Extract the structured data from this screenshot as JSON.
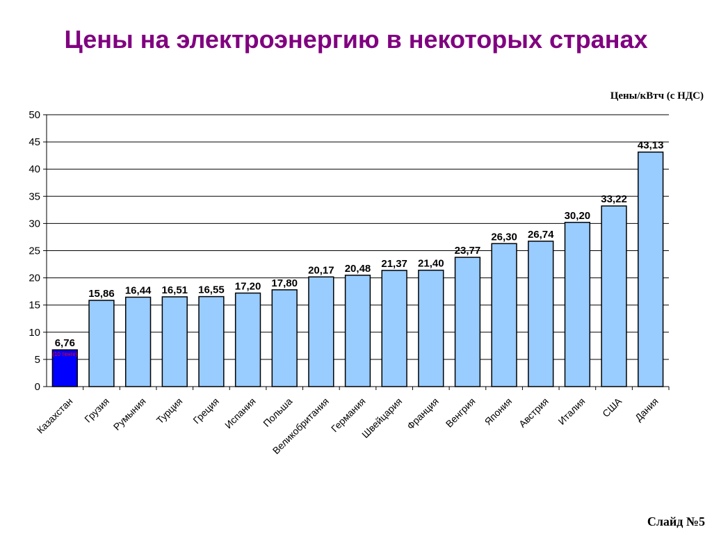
{
  "title": "Цены на электроэнергию в некоторых странах",
  "unit_label": "Цены/кВтч (с НДС)",
  "slide_label": "Слайд №5",
  "colors": {
    "bar": "#99ccff",
    "highlight": "#0000ff",
    "title": "#800080",
    "note": "#ff0000"
  },
  "chart_data": {
    "type": "bar",
    "categories": [
      "Казахстан",
      "Грузия",
      "Румыния",
      "Турция",
      "Греция",
      "Испания",
      "Польша",
      "Великобритания",
      "Германия",
      "Швейцария",
      "Франция",
      "Венгрия",
      "Япония",
      "Австрия",
      "Италия",
      "США",
      "Дания"
    ],
    "values": [
      6.76,
      15.86,
      16.44,
      16.51,
      16.55,
      17.2,
      17.8,
      20.17,
      20.48,
      21.37,
      21.4,
      23.77,
      26.3,
      26.74,
      30.2,
      33.22,
      43.13
    ],
    "value_labels": [
      "6,76",
      "15,86",
      "16,44",
      "16,51",
      "16,55",
      "17,20",
      "17,80",
      "20,17",
      "20,48",
      "21,37",
      "21,40",
      "23,77",
      "26,30",
      "26,74",
      "30,20",
      "33,22",
      "43,13"
    ],
    "highlight_index": 0,
    "highlight_note": "(10 тенге)",
    "ylim": [
      0,
      50
    ],
    "yticks": [
      0,
      5,
      10,
      15,
      20,
      25,
      30,
      35,
      40,
      45,
      50
    ],
    "grid": true,
    "xlabel": "",
    "ylabel": "Цены/кВтч (с НДС)"
  }
}
